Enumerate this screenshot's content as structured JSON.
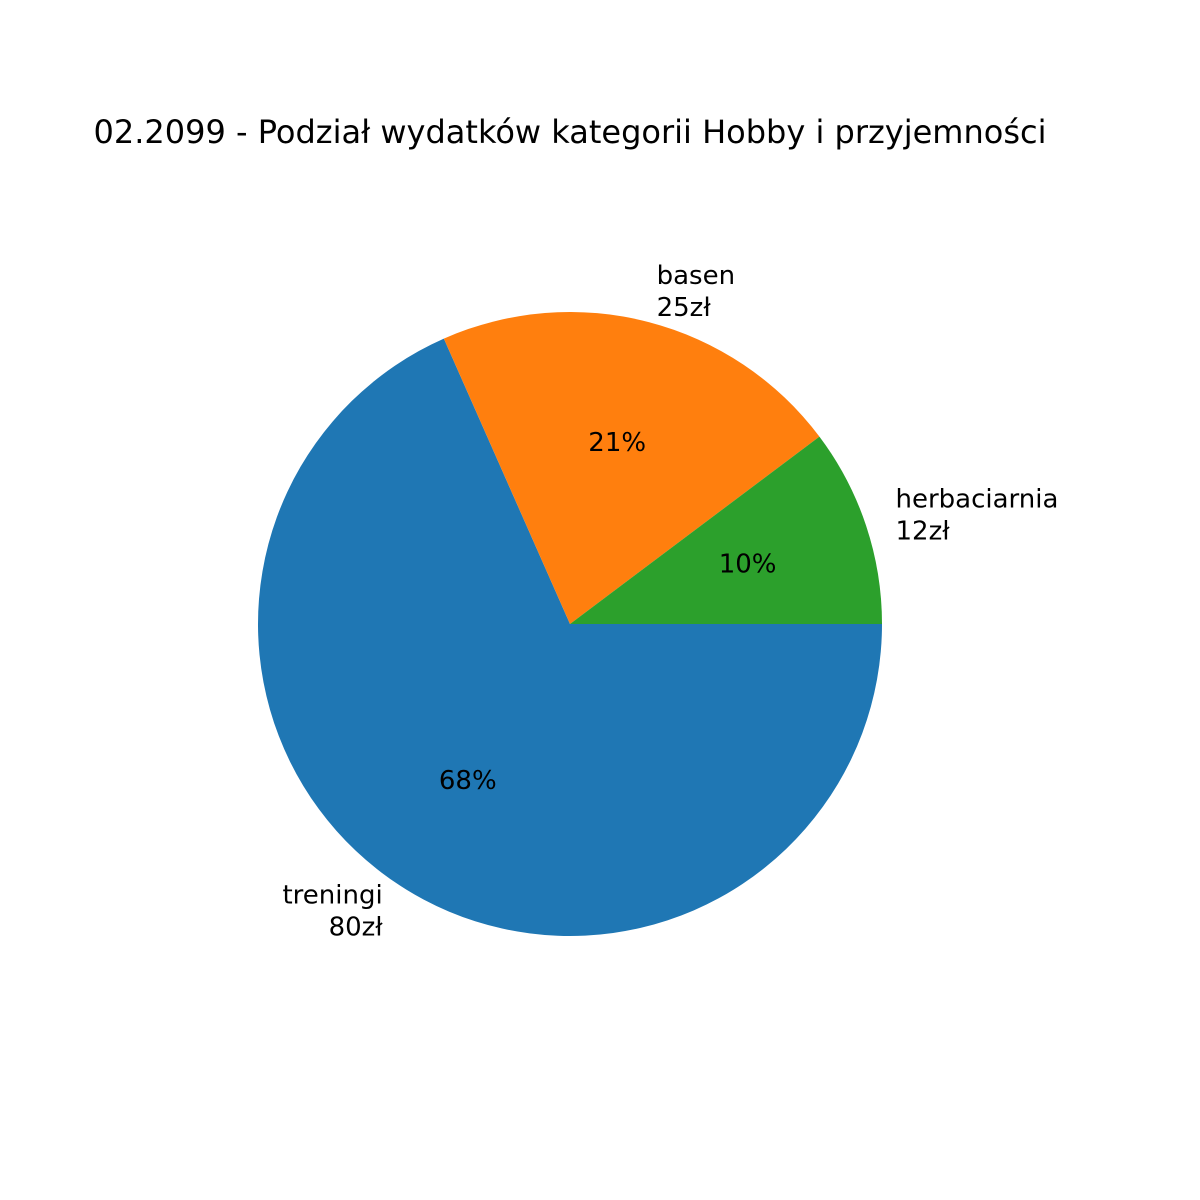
{
  "chart_data": {
    "type": "pie",
    "title": "02.2099 - Podział wydatków kategorii Hobby i przyjemności",
    "start_angle_deg": 0,
    "direction": "clockwise",
    "slices": [
      {
        "label": "treningi",
        "amount": "80zł",
        "value": 80,
        "percent": "68%",
        "color": "#1f77b4"
      },
      {
        "label": "basen",
        "amount": "25zł",
        "value": 25,
        "percent": "21%",
        "color": "#ff7f0e"
      },
      {
        "label": "herbaciarnia",
        "amount": "12zł",
        "value": 12,
        "percent": "10%",
        "color": "#2ca02c"
      }
    ]
  }
}
